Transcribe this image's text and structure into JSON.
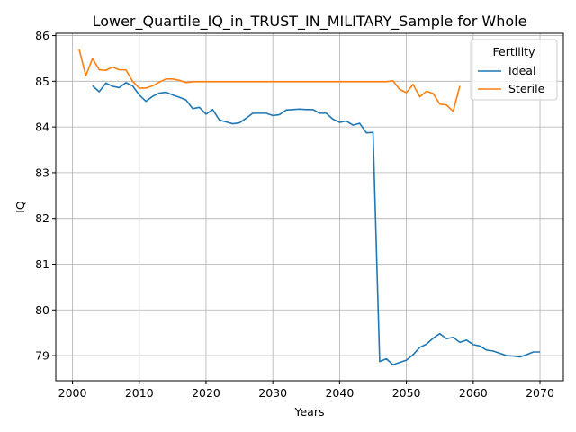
{
  "chart_data": {
    "type": "line",
    "title": "Lower_Quartile_IQ_in_TRUST_IN_MILITARY_Sample for Whole",
    "xlabel": "Years",
    "ylabel": "IQ",
    "xlim": [
      1997.5,
      2073.5
    ],
    "ylim": [
      78.45,
      86.05
    ],
    "xticks": [
      2000,
      2010,
      2020,
      2030,
      2040,
      2050,
      2060,
      2070
    ],
    "yticks": [
      79,
      80,
      81,
      82,
      83,
      84,
      85,
      86
    ],
    "grid": true,
    "legend": {
      "title": "Fertility",
      "placement": "top-right"
    },
    "series": [
      {
        "name": "Ideal",
        "color": "#1f77b4",
        "points": [
          [
            2003,
            84.9
          ],
          [
            2004,
            84.77
          ],
          [
            2005,
            84.96
          ],
          [
            2006,
            84.89
          ],
          [
            2007,
            84.86
          ],
          [
            2008,
            84.97
          ],
          [
            2009,
            84.9
          ],
          [
            2010,
            84.7
          ],
          [
            2011,
            84.56
          ],
          [
            2012,
            84.67
          ],
          [
            2013,
            84.74
          ],
          [
            2014,
            84.76
          ],
          [
            2015,
            84.7
          ],
          [
            2016,
            84.65
          ],
          [
            2017,
            84.59
          ],
          [
            2018,
            84.4
          ],
          [
            2019,
            84.43
          ],
          [
            2020,
            84.28
          ],
          [
            2021,
            84.38
          ],
          [
            2022,
            84.15
          ],
          [
            2023,
            84.11
          ],
          [
            2024,
            84.07
          ],
          [
            2025,
            84.09
          ],
          [
            2026,
            84.19
          ],
          [
            2027,
            84.3
          ],
          [
            2028,
            84.3
          ],
          [
            2029,
            84.3
          ],
          [
            2030,
            84.25
          ],
          [
            2031,
            84.27
          ],
          [
            2032,
            84.37
          ],
          [
            2033,
            84.38
          ],
          [
            2034,
            84.39
          ],
          [
            2035,
            84.38
          ],
          [
            2036,
            84.38
          ],
          [
            2037,
            84.3
          ],
          [
            2038,
            84.3
          ],
          [
            2039,
            84.17
          ],
          [
            2040,
            84.1
          ],
          [
            2041,
            84.13
          ],
          [
            2042,
            84.04
          ],
          [
            2043,
            84.08
          ],
          [
            2044,
            83.87
          ],
          [
            2045,
            83.88
          ],
          [
            2046,
            78.87
          ],
          [
            2047,
            78.93
          ],
          [
            2048,
            78.8
          ],
          [
            2049,
            78.85
          ],
          [
            2050,
            78.9
          ],
          [
            2051,
            79.02
          ],
          [
            2052,
            79.18
          ],
          [
            2053,
            79.25
          ],
          [
            2054,
            79.38
          ],
          [
            2055,
            79.48
          ],
          [
            2056,
            79.37
          ],
          [
            2057,
            79.4
          ],
          [
            2058,
            79.29
          ],
          [
            2059,
            79.34
          ],
          [
            2060,
            79.24
          ],
          [
            2061,
            79.21
          ],
          [
            2062,
            79.12
          ],
          [
            2063,
            79.1
          ],
          [
            2064,
            79.05
          ],
          [
            2065,
            79.0
          ],
          [
            2066,
            78.99
          ],
          [
            2067,
            78.97
          ],
          [
            2068,
            79.02
          ],
          [
            2069,
            79.08
          ],
          [
            2070,
            79.08
          ]
        ]
      },
      {
        "name": "Sterile",
        "color": "#ff7f0e",
        "points": [
          [
            2001,
            85.7
          ],
          [
            2002,
            85.12
          ],
          [
            2003,
            85.5
          ],
          [
            2004,
            85.25
          ],
          [
            2005,
            85.24
          ],
          [
            2006,
            85.31
          ],
          [
            2007,
            85.25
          ],
          [
            2008,
            85.25
          ],
          [
            2009,
            85.0
          ],
          [
            2010,
            84.85
          ],
          [
            2011,
            84.85
          ],
          [
            2012,
            84.9
          ],
          [
            2013,
            84.98
          ],
          [
            2014,
            85.05
          ],
          [
            2015,
            85.05
          ],
          [
            2016,
            85.02
          ],
          [
            2017,
            84.97
          ],
          [
            2018,
            84.99
          ],
          [
            2019,
            84.99
          ],
          [
            2020,
            84.99
          ],
          [
            2021,
            84.99
          ],
          [
            2022,
            84.99
          ],
          [
            2023,
            84.99
          ],
          [
            2024,
            84.99
          ],
          [
            2025,
            84.99
          ],
          [
            2026,
            84.99
          ],
          [
            2027,
            84.99
          ],
          [
            2028,
            84.99
          ],
          [
            2029,
            84.99
          ],
          [
            2030,
            84.99
          ],
          [
            2031,
            84.99
          ],
          [
            2032,
            84.99
          ],
          [
            2033,
            84.99
          ],
          [
            2034,
            84.99
          ],
          [
            2035,
            84.99
          ],
          [
            2036,
            84.99
          ],
          [
            2037,
            84.99
          ],
          [
            2038,
            84.99
          ],
          [
            2039,
            84.99
          ],
          [
            2040,
            84.99
          ],
          [
            2041,
            84.99
          ],
          [
            2042,
            84.99
          ],
          [
            2043,
            84.99
          ],
          [
            2044,
            84.99
          ],
          [
            2045,
            84.99
          ],
          [
            2046,
            84.99
          ],
          [
            2047,
            84.99
          ],
          [
            2048,
            85.01
          ],
          [
            2049,
            84.82
          ],
          [
            2050,
            84.75
          ],
          [
            2051,
            84.93
          ],
          [
            2052,
            84.66
          ],
          [
            2053,
            84.78
          ],
          [
            2054,
            84.73
          ],
          [
            2055,
            84.5
          ],
          [
            2056,
            84.48
          ],
          [
            2057,
            84.34
          ],
          [
            2058,
            84.9
          ]
        ]
      }
    ]
  }
}
